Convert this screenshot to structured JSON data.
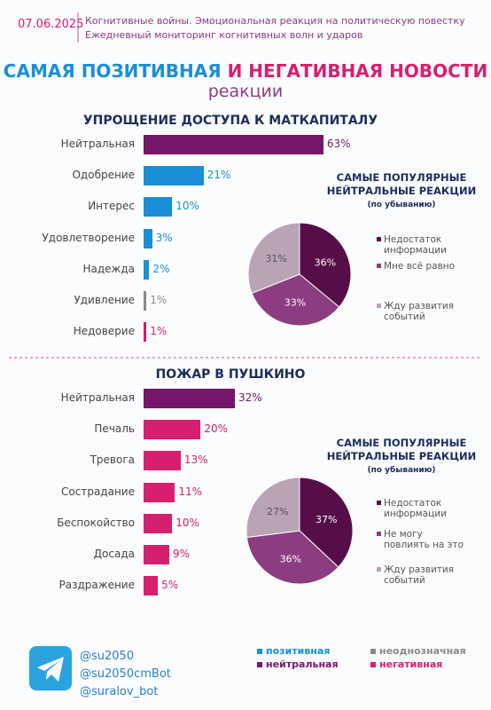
{
  "header": {
    "date": "07.06.2025",
    "line1": "Когнитивные войны. Эмоциональная реакция на политическую повестку",
    "line2": "Ежедневный мониторинг когнитивных волн и ударов"
  },
  "title_part1": "САМАЯ ПОЗИТИВНАЯ",
  "title_part2": "И НЕГАТИВНАЯ НОВОСТИ",
  "subtitle": "реакции",
  "chart_data": [
    {
      "type": "bar",
      "title": "УПРОЩЕНИЕ ДОСТУПА К МАТКАПИТАЛУ",
      "categories": [
        "Нейтральная",
        "Одобрение",
        "Интерес",
        "Удовлетворение",
        "Надежда",
        "Удивление",
        "Недоверие"
      ],
      "values": [
        63,
        21,
        10,
        3,
        2,
        1,
        1
      ],
      "value_labels": [
        "63%",
        "21%",
        "10%",
        "3%",
        "2%",
        "1%",
        "1%"
      ],
      "colors": [
        "#76166a",
        "#1a8ed6",
        "#1a8ed6",
        "#1a8ed6",
        "#1a8ed6",
        "#8a8a8a",
        "#d81b72"
      ]
    },
    {
      "type": "pie",
      "title": "САМЫЕ ПОПУЛЯРНЫЕ НЕЙТРАЛЬНЫЕ РЕАКЦИИ",
      "subtitle": "(по убыванию)",
      "categories": [
        "Недостаток информации",
        "Мне всё равно",
        "Жду развития событий"
      ],
      "values": [
        36,
        33,
        31
      ],
      "value_labels": [
        "36%",
        "33%",
        "31%"
      ],
      "colors": [
        "#560e48",
        "#8c3c80",
        "#b8a4b5"
      ]
    },
    {
      "type": "bar",
      "title": "ПОЖАР В ПУШКИНО",
      "categories": [
        "Нейтральная",
        "Печаль",
        "Тревога",
        "Сострадание",
        "Беспокойство",
        "Досада",
        "Раздражение"
      ],
      "values": [
        32,
        20,
        13,
        11,
        10,
        9,
        5
      ],
      "value_labels": [
        "32%",
        "20%",
        "13%",
        "11%",
        "10%",
        "9%",
        "5%"
      ],
      "colors": [
        "#76166a",
        "#d6206f",
        "#d6206f",
        "#d6206f",
        "#d6206f",
        "#d6206f",
        "#d6206f"
      ]
    },
    {
      "type": "pie",
      "title": "САМЫЕ ПОПУЛЯРНЫЕ НЕЙТРАЛЬНЫЕ РЕАКЦИИ",
      "subtitle": "(по убыванию)",
      "categories": [
        "Недостаток информации",
        "Не могу повлиять на это",
        "Жду развития событий"
      ],
      "values": [
        37,
        36,
        27
      ],
      "value_labels": [
        "37%",
        "36%",
        "27%"
      ],
      "colors": [
        "#560e48",
        "#8c3c80",
        "#b8a4b5"
      ]
    }
  ],
  "legend": [
    {
      "label": "позитивная",
      "color": "#1a8ed6"
    },
    {
      "label": "неоднозначная",
      "color": "#8a8a8a"
    },
    {
      "label": "нейтральная",
      "color": "#76166a"
    },
    {
      "label": "негативная",
      "color": "#d6206f"
    }
  ],
  "footer": {
    "handles": [
      "@su2050",
      "@su2050cmBot",
      "@suralov_bot"
    ]
  }
}
